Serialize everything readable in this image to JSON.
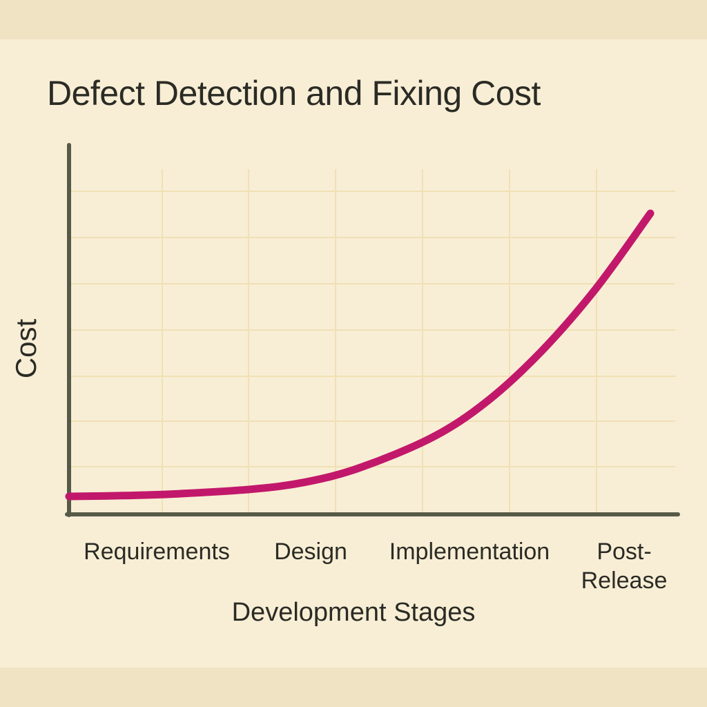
{
  "chart_data": {
    "type": "line",
    "title": "Defect Detection and Fixing Cost",
    "xlabel": "Development Stages",
    "ylabel": "Cost",
    "categories": [
      "Requirements",
      "Design",
      "Implementation",
      "Post-\nRelease"
    ],
    "series": [
      {
        "x": [
          0,
          0.3,
          0.6,
          1.0,
          1.3,
          1.6,
          2.0,
          2.3,
          2.6,
          2.9,
          3.2
        ],
        "values": [
          1.0,
          1.05,
          1.15,
          1.4,
          1.8,
          2.6,
          4.3,
          6.3,
          9.1,
          12.6,
          16.8
        ],
        "color": "#c2186b"
      }
    ],
    "xlim": [
      0,
      3.2
    ],
    "ylim": [
      0,
      20
    ],
    "grid": true,
    "axis_color": "#565a47",
    "grid_color": "#f0e0b4"
  }
}
